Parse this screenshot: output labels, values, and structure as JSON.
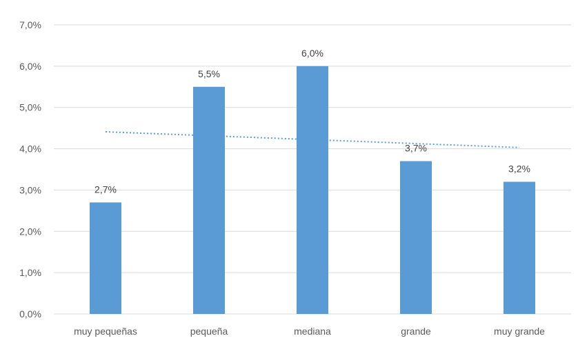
{
  "chart_data": {
    "type": "bar",
    "categories": [
      "muy pequeñas",
      "pequeña",
      "mediana",
      "grande",
      "muy grande"
    ],
    "values": [
      2.7,
      5.5,
      6.0,
      3.7,
      3.2
    ],
    "data_labels": [
      "2,7%",
      "5,5%",
      "6,0%",
      "3,7%",
      "3,2%"
    ],
    "ylim": [
      0,
      7
    ],
    "yticks": [
      0,
      1,
      2,
      3,
      4,
      5,
      6,
      7
    ],
    "ytick_labels": [
      "0,0%",
      "1,0%",
      "2,0%",
      "3,0%",
      "4,0%",
      "5,0%",
      "6,0%",
      "7,0%"
    ],
    "grid": true,
    "legend": "none",
    "bar_color": "#5b9bd5",
    "grid_color": "#d9d9d9",
    "trendline": {
      "type": "linear",
      "style": "dotted",
      "color": "#5b9bd5",
      "start_value": 4.41,
      "end_value": 4.03
    }
  }
}
